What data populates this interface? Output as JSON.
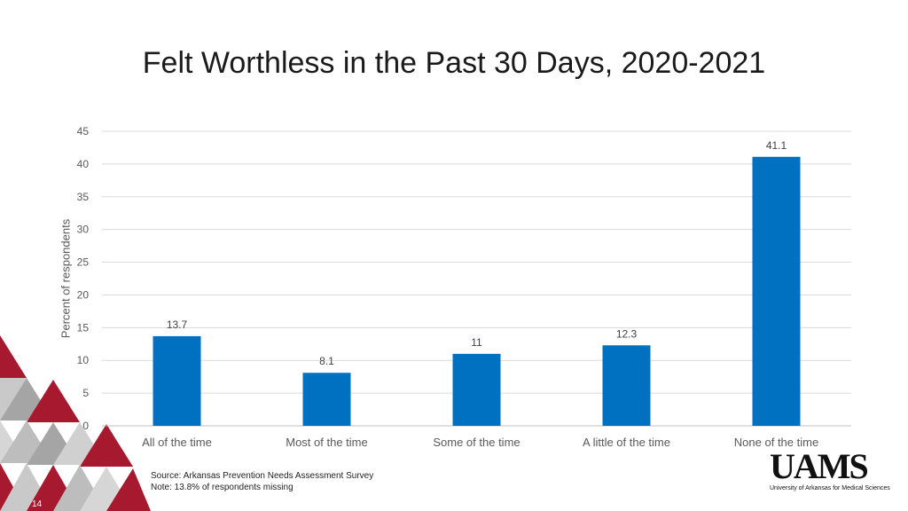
{
  "title": "Felt Worthless in the Past 30 Days, 2020-2021",
  "chart_data": {
    "type": "bar",
    "title": "Felt Worthless in the Past 30 Days, 2020-2021",
    "xlabel": "",
    "ylabel": "Percent of respondents",
    "categories": [
      "All of the time",
      "Most of the time",
      "Some of the time",
      "A little of the time",
      "None of the time"
    ],
    "values": [
      13.7,
      8.1,
      11,
      12.3,
      41.1
    ],
    "data_labels": [
      "13.7",
      "8.1",
      "11",
      "12.3",
      "41.1"
    ],
    "ylim": [
      0,
      45
    ],
    "yticks": [
      0,
      5,
      10,
      15,
      20,
      25,
      30,
      35,
      40,
      45
    ],
    "grid": true,
    "bar_color": "#0070C0"
  },
  "footnotes": {
    "source": "Source: Arkansas Prevention Needs Assessment Survey",
    "note": "Note: 13.8% of respondents missing"
  },
  "slide_number": "14",
  "logo": {
    "text": "UAMS",
    "subtitle": "University of Arkansas for Medical Sciences"
  },
  "colors": {
    "accent_red": "#A6192E",
    "gray": "#A5A5A5",
    "light_gray": "#D0D0D0"
  }
}
